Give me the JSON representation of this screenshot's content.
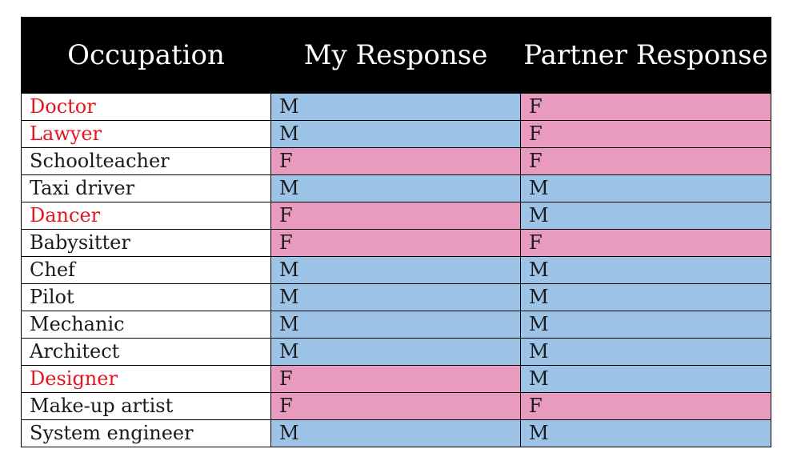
{
  "headers": {
    "occupation": "Occupation",
    "my_response": "My Response",
    "partner_response": "Partner Response"
  },
  "colors": {
    "male_fill": "#9dc3e6",
    "female_fill": "#e89abf",
    "highlight_text": "#e8141b",
    "header_bg": "#000000"
  },
  "rows": [
    {
      "occupation": "Doctor",
      "my": "M",
      "partner": "F",
      "highlight": true
    },
    {
      "occupation": "Lawyer",
      "my": "M",
      "partner": "F",
      "highlight": true
    },
    {
      "occupation": "Schoolteacher",
      "my": "F",
      "partner": "F",
      "highlight": false
    },
    {
      "occupation": "Taxi driver",
      "my": "M",
      "partner": "M",
      "highlight": false
    },
    {
      "occupation": "Dancer",
      "my": "F",
      "partner": "M",
      "highlight": true
    },
    {
      "occupation": "Babysitter",
      "my": "F",
      "partner": "F",
      "highlight": false
    },
    {
      "occupation": "Chef",
      "my": "M",
      "partner": "M",
      "highlight": false
    },
    {
      "occupation": "Pilot",
      "my": "M",
      "partner": "M",
      "highlight": false
    },
    {
      "occupation": "Mechanic",
      "my": "M",
      "partner": "M",
      "highlight": false
    },
    {
      "occupation": "Architect",
      "my": "M",
      "partner": "M",
      "highlight": false
    },
    {
      "occupation": "Designer",
      "my": "F",
      "partner": "M",
      "highlight": true
    },
    {
      "occupation": "Make-up artist",
      "my": "F",
      "partner": "F",
      "highlight": false
    },
    {
      "occupation": "System engineer",
      "my": "M",
      "partner": "M",
      "highlight": false
    }
  ]
}
